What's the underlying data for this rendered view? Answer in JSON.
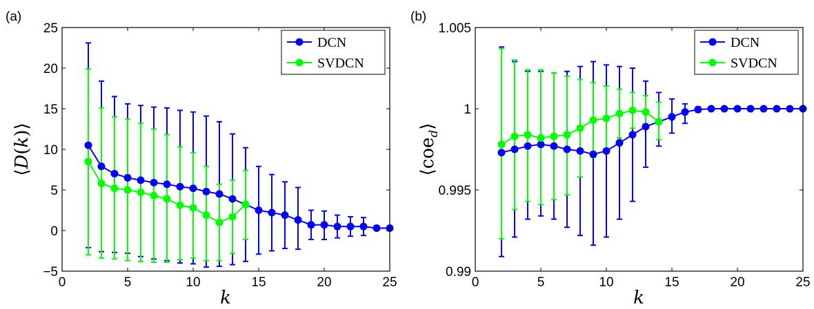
{
  "chart_data": [
    {
      "type": "line",
      "panel_label": "(a)",
      "xlabel": "k",
      "ylabel": {
        "pre": "⟨",
        "italic": "D",
        "mid": "(",
        "italic2": "k",
        "post": ")⟩"
      },
      "xlim": [
        0,
        25
      ],
      "ylim": [
        -5,
        25
      ],
      "xticks": [
        "0",
        "5",
        "10",
        "15",
        "20",
        "25"
      ],
      "yticks": [
        "−5",
        "0",
        "5",
        "10",
        "15",
        "20",
        "25"
      ],
      "grid": false,
      "legend_position": "top-right",
      "series": [
        {
          "name": "DCN",
          "color": "#0000ff",
          "x": [
            2,
            3,
            4,
            5,
            6,
            7,
            8,
            9,
            10,
            11,
            12,
            13,
            14,
            15,
            16,
            17,
            18,
            19,
            20,
            21,
            22,
            23,
            24,
            25
          ],
          "y": [
            10.5,
            7.9,
            7.0,
            6.5,
            6.2,
            5.9,
            5.7,
            5.4,
            5.2,
            4.8,
            4.5,
            3.9,
            3.2,
            2.5,
            2.2,
            1.9,
            1.3,
            0.7,
            0.7,
            0.5,
            0.5,
            0.5,
            0.3,
            0.3
          ],
          "err_upper": [
            23.1,
            18.4,
            16.5,
            15.6,
            15.4,
            15.2,
            15.1,
            14.8,
            14.6,
            14.1,
            13.4,
            11.9,
            10.2,
            7.9,
            6.9,
            6.0,
            5.3,
            2.5,
            2.4,
            1.9,
            1.7,
            1.6,
            0.4,
            0.4
          ],
          "err_lower": [
            -2.1,
            -2.6,
            -2.7,
            -2.8,
            -3.2,
            -3.5,
            -3.7,
            -4.0,
            -4.1,
            -4.5,
            -4.4,
            -4.2,
            -3.8,
            -2.9,
            -2.5,
            -2.2,
            -2.3,
            -1.1,
            -1.1,
            -0.9,
            -0.7,
            -0.6,
            0.2,
            0.2
          ]
        },
        {
          "name": "SVDCN",
          "color": "#00ff00",
          "x": [
            2,
            3,
            4,
            5,
            6,
            7,
            8,
            9,
            10,
            11,
            12,
            13,
            14
          ],
          "y": [
            8.5,
            5.8,
            5.2,
            5.0,
            4.7,
            4.3,
            3.9,
            3.1,
            2.8,
            1.9,
            1.0,
            1.7,
            3.2
          ],
          "err_upper": [
            19.9,
            15.1,
            14.0,
            13.7,
            13.2,
            12.5,
            11.8,
            10.3,
            9.6,
            7.9,
            5.7,
            6.2,
            7.4
          ],
          "err_lower": [
            -3.0,
            -3.4,
            -3.5,
            -3.7,
            -3.8,
            -3.9,
            -3.9,
            -3.6,
            -3.4,
            -3.7,
            -3.7,
            -2.8,
            -1.1
          ]
        }
      ]
    },
    {
      "type": "line",
      "panel_label": "(b)",
      "xlabel": "k",
      "ylabel": {
        "pre": "⟨coe",
        "sub": "d",
        "post": "⟩"
      },
      "xlim": [
        0,
        25
      ],
      "ylim": [
        0.99,
        1.005
      ],
      "xticks": [
        "0",
        "5",
        "10",
        "15",
        "20",
        "25"
      ],
      "yticks": [
        "0.99",
        "0.995",
        "1",
        "1.005"
      ],
      "grid": false,
      "legend_position": "top-right",
      "series": [
        {
          "name": "DCN",
          "color": "#0000ff",
          "x": [
            2,
            3,
            4,
            5,
            6,
            7,
            8,
            9,
            10,
            11,
            12,
            13,
            14,
            15,
            16,
            17,
            18,
            19,
            20,
            21,
            22,
            23,
            24,
            25
          ],
          "y": [
            0.9973,
            0.9975,
            0.9977,
            0.9978,
            0.9977,
            0.9975,
            0.9974,
            0.9972,
            0.9974,
            0.9979,
            0.9984,
            0.9989,
            0.9992,
            0.9995,
            0.9998,
            0.99995,
            1.0,
            1.0,
            1.0,
            1.0,
            1.0,
            1.0,
            1.0,
            1.0
          ],
          "err_upper": [
            1.0038,
            1.0029,
            1.0023,
            1.0023,
            1.0022,
            1.0023,
            1.0026,
            1.0029,
            1.0027,
            1.0026,
            1.0025,
            1.0017,
            1.001,
            1.0006,
            1.0003,
            1.0001,
            1.0,
            1.0,
            1.0,
            1.0,
            1.0,
            1.0,
            1.0,
            1.0
          ],
          "err_lower": [
            0.9909,
            0.9921,
            0.9932,
            0.9934,
            0.9932,
            0.9927,
            0.9922,
            0.9916,
            0.9921,
            0.9932,
            0.9943,
            0.9964,
            0.9977,
            0.9985,
            0.9991,
            0.9998,
            0.9999,
            1.0,
            1.0,
            1.0,
            1.0,
            1.0,
            1.0,
            1.0
          ]
        },
        {
          "name": "SVDCN",
          "color": "#00ff00",
          "x": [
            2,
            3,
            4,
            5,
            6,
            7,
            8,
            9,
            10,
            11,
            12,
            13,
            14
          ],
          "y": [
            0.9978,
            0.9983,
            0.9984,
            0.9982,
            0.9983,
            0.9984,
            0.9988,
            0.9993,
            0.9994,
            0.9997,
            0.9999,
            0.9998,
            0.9992
          ],
          "err_upper": [
            1.0037,
            1.003,
            1.0024,
            1.0024,
            1.0022,
            1.002,
            1.0018,
            1.0016,
            1.0014,
            1.0012,
            1.001,
            1.0008,
            1.0004
          ],
          "err_lower": [
            0.992,
            0.9938,
            0.9943,
            0.9941,
            0.9944,
            0.9947,
            0.9958,
            0.997,
            0.9974,
            0.9982,
            0.9988,
            0.9988,
            0.9981
          ]
        }
      ]
    }
  ]
}
